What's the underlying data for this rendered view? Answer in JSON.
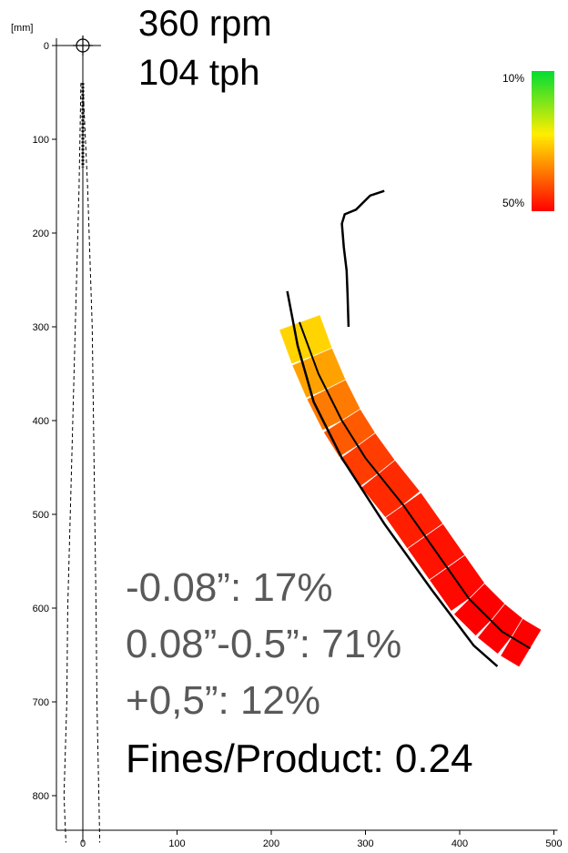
{
  "chart_data": {
    "type": "line",
    "axis_unit": "[mm]",
    "x_ticks": [
      0,
      100,
      200,
      300,
      400,
      500
    ],
    "y_ticks": [
      0,
      100,
      200,
      300,
      400,
      500,
      600,
      700,
      800
    ],
    "xlim": [
      0,
      500
    ],
    "ylim": [
      0,
      850
    ],
    "y_inverted": true,
    "origin_marker": {
      "x": 0,
      "y": 0,
      "symbol": "crosshair-circle"
    },
    "plume_left_dashed": [
      [
        -2,
        40
      ],
      [
        -4,
        150
      ],
      [
        -8,
        300
      ],
      [
        -12,
        450
      ],
      [
        -16,
        600
      ],
      [
        -17,
        700
      ],
      [
        -20,
        800
      ],
      [
        -18,
        850
      ]
    ],
    "plume_right_dashed": [
      [
        0,
        40
      ],
      [
        5,
        150
      ],
      [
        10,
        300
      ],
      [
        12,
        450
      ],
      [
        14,
        600
      ],
      [
        15,
        700
      ],
      [
        17,
        800
      ],
      [
        18,
        850
      ]
    ],
    "plume_center_dotted": [
      [
        0,
        40
      ],
      [
        0,
        130
      ]
    ],
    "vertical_line": [
      [
        0,
        0
      ],
      [
        0,
        850
      ]
    ],
    "curve_inner": [
      [
        320,
        155
      ],
      [
        305,
        160
      ],
      [
        290,
        175
      ],
      [
        278,
        180
      ],
      [
        275,
        190
      ],
      [
        277,
        215
      ],
      [
        280,
        240
      ],
      [
        281,
        265
      ],
      [
        282,
        300
      ]
    ],
    "curve_outer": [
      [
        217,
        262
      ],
      [
        228,
        320
      ],
      [
        245,
        380
      ],
      [
        275,
        440
      ],
      [
        320,
        510
      ],
      [
        370,
        580
      ],
      [
        415,
        640
      ],
      [
        440,
        662
      ]
    ],
    "curve_center": [
      [
        230,
        295
      ],
      [
        250,
        350
      ],
      [
        275,
        400
      ],
      [
        300,
        440
      ],
      [
        340,
        490
      ],
      [
        375,
        540
      ],
      [
        410,
        590
      ],
      [
        445,
        625
      ],
      [
        475,
        643
      ]
    ],
    "band_segments": [
      {
        "from": [
          262,
          300
        ],
        "to": [
          255,
          325
        ],
        "color": "#FFD400"
      },
      {
        "from": [
          280,
          330
        ],
        "to": [
          262,
          350
        ],
        "color": "#FFA200"
      },
      {
        "from": [
          290,
          360
        ],
        "to": [
          272,
          380
        ],
        "color": "#FF7A00"
      },
      {
        "from": [
          303,
          385
        ],
        "to": [
          283,
          405
        ],
        "color": "#FF5A00"
      },
      {
        "from": [
          318,
          412
        ],
        "to": [
          295,
          432
        ],
        "color": "#FF3D00"
      },
      {
        "from": [
          335,
          442
        ],
        "to": [
          310,
          460
        ],
        "color": "#FF2A00"
      },
      {
        "from": [
          352,
          472
        ],
        "to": [
          327,
          490
        ],
        "color": "#FF1E00"
      },
      {
        "from": [
          370,
          502
        ],
        "to": [
          345,
          520
        ],
        "color": "#FF1200"
      },
      {
        "from": [
          390,
          532
        ],
        "to": [
          365,
          550
        ],
        "color": "#FF0800"
      },
      {
        "from": [
          410,
          562
        ],
        "to": [
          385,
          580
        ],
        "color": "#FF0000"
      },
      {
        "from": [
          430,
          592
        ],
        "to": [
          405,
          610
        ],
        "color": "#FF0000"
      },
      {
        "from": [
          450,
          620
        ],
        "to": [
          430,
          640
        ],
        "color": "#FF0000"
      }
    ],
    "color_scale": {
      "top_label": "10%",
      "bottom_label": "50%",
      "top_color": "#00DD33",
      "mid_color": "#FFEE00",
      "bottom_color": "#FF0000"
    }
  },
  "header": {
    "rpm": "360 rpm",
    "tph": "104 tph"
  },
  "stats": {
    "line1": "-0.08”: 17%",
    "line2": "0.08”-0.5”: 71%",
    "line3": "+0,5”: 12%",
    "line4": "Fines/Product: 0.24",
    "grey_color": "#595959",
    "black_color": "#000000"
  }
}
